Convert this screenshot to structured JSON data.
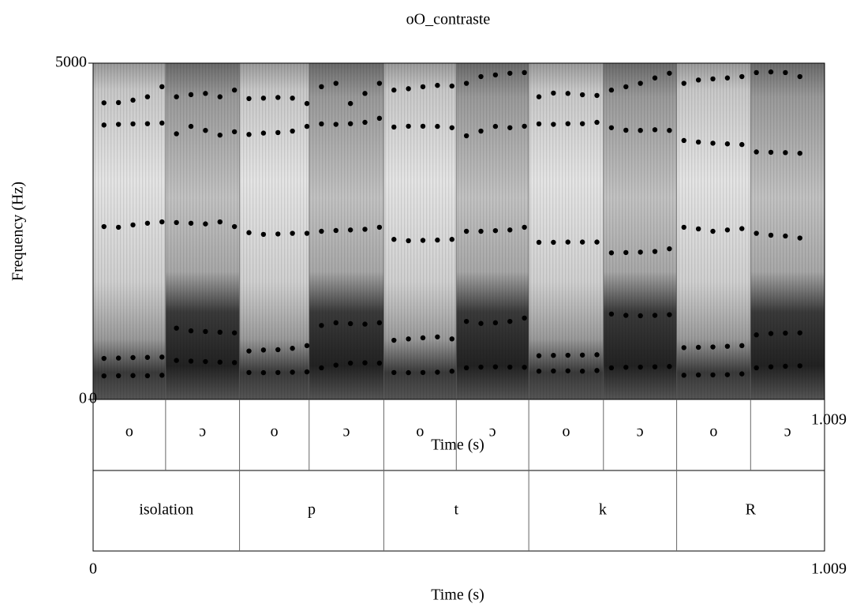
{
  "chart_data": {
    "type": "spectrogram",
    "title": "oO_contraste",
    "xlabel": "Time (s)",
    "ylabel": "Frequency (Hz)",
    "xlim": [
      0,
      1.009
    ],
    "ylim": [
      0,
      5000
    ],
    "xticks": [
      0,
      1.009
    ],
    "yticks": [
      0,
      5000
    ],
    "x": [
      0.015,
      0.035,
      0.055,
      0.075,
      0.095,
      0.115,
      0.135,
      0.155,
      0.175,
      0.195,
      0.215,
      0.235,
      0.255,
      0.275,
      0.295,
      0.315,
      0.335,
      0.355,
      0.375,
      0.395,
      0.415,
      0.435,
      0.455,
      0.475,
      0.495,
      0.515,
      0.535,
      0.555,
      0.575,
      0.595,
      0.615,
      0.635,
      0.655,
      0.675,
      0.695,
      0.715,
      0.735,
      0.755,
      0.775,
      0.795,
      0.815,
      0.835,
      0.855,
      0.875,
      0.895,
      0.915,
      0.935,
      0.955,
      0.975
    ],
    "series": [
      {
        "color": "#000000",
        "values": [
          350,
          352,
          355,
          352,
          360,
          580,
          570,
          563,
          555,
          548,
          400,
          398,
          400,
          405,
          410,
          470,
          510,
          540,
          545,
          540,
          400,
          398,
          400,
          405,
          420,
          470,
          481,
          485,
          481,
          478,
          420,
          423,
          425,
          420,
          430,
          470,
          478,
          481,
          485,
          490,
          360,
          364,
          365,
          368,
          380,
          470,
          485,
          493,
          500
        ]
      },
      {
        "color": "#000000",
        "values": [
          610,
          615,
          622,
          625,
          630,
          1060,
          1020,
          1010,
          1000,
          990,
          720,
          735,
          740,
          760,
          800,
          1100,
          1140,
          1127,
          1120,
          1140,
          880,
          900,
          916,
          930,
          900,
          1160,
          1130,
          1140,
          1160,
          1210,
          650,
          655,
          657,
          660,
          665,
          1270,
          1250,
          1244,
          1250,
          1260,
          770,
          775,
          780,
          790,
          800,
          960,
          980,
          986,
          990
        ]
      },
      {
        "color": "#000000",
        "values": [
          2570,
          2560,
          2595,
          2620,
          2640,
          2630,
          2620,
          2610,
          2640,
          2570,
          2480,
          2454,
          2460,
          2470,
          2470,
          2500,
          2512,
          2520,
          2530,
          2560,
          2380,
          2360,
          2365,
          2370,
          2380,
          2500,
          2500,
          2510,
          2520,
          2560,
          2336,
          2336,
          2340,
          2340,
          2340,
          2180,
          2184,
          2190,
          2200,
          2240,
          2560,
          2536,
          2500,
          2520,
          2540,
          2470,
          2442,
          2430,
          2400
        ]
      },
      {
        "color": "#000000",
        "values": [
          4080,
          4090,
          4097,
          4100,
          4110,
          3950,
          4060,
          4000,
          3930,
          3980,
          3940,
          3960,
          3968,
          3990,
          4060,
          4097,
          4090,
          4100,
          4120,
          4180,
          4050,
          4062,
          4062,
          4060,
          4040,
          3920,
          3990,
          4060,
          4040,
          4062,
          4097,
          4090,
          4100,
          4100,
          4120,
          4040,
          4003,
          4000,
          4010,
          4000,
          3850,
          3827,
          3810,
          3800,
          3790,
          3680,
          3675,
          3670,
          3660
        ]
      },
      {
        "color": "#000000",
        "values": [
          4410,
          4414,
          4450,
          4500,
          4650,
          4500,
          4532,
          4550,
          4500,
          4600,
          4473,
          4480,
          4490,
          4480,
          4400,
          4650,
          4700,
          4400,
          4550,
          4700,
          4600,
          4620,
          4649,
          4670,
          4660,
          4700,
          4800,
          4825,
          4850,
          4860,
          4500,
          4555,
          4550,
          4530,
          4520,
          4600,
          4649,
          4700,
          4780,
          4850,
          4700,
          4750,
          4766,
          4780,
          4800,
          4860,
          4870,
          4860,
          4800
        ]
      }
    ],
    "tiers": [
      {
        "labels": [
          "o",
          "ɔ",
          "o",
          "ɔ",
          "o",
          "ɔ",
          "o",
          "ɔ",
          "o",
          "ɔ"
        ],
        "boundaries": [
          0.1,
          0.202,
          0.298,
          0.401,
          0.501,
          0.601,
          0.704,
          0.805,
          0.907
        ]
      },
      {
        "labels": [
          "isolation",
          "p",
          "t",
          "k",
          "R"
        ],
        "boundaries": [
          0.202,
          0.401,
          0.601,
          0.805
        ]
      }
    ]
  }
}
